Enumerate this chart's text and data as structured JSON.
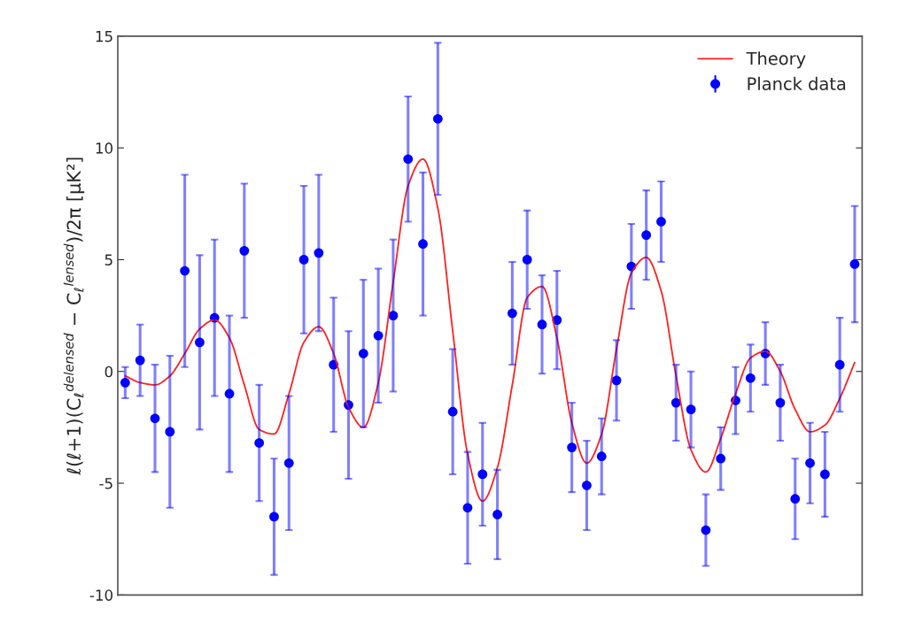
{
  "chart_data": {
    "type": "scatter",
    "ylabel": "ℓ(ℓ+1)(C$_{ℓ}$$^{delensed}$ − C$_{ℓ}$$^{lensed}$)/2π [μK²]",
    "categories": [
      null,
      null,
      null,
      null,
      null,
      null,
      null,
      null,
      null,
      null,
      null,
      null,
      null,
      null,
      null,
      null,
      null,
      null,
      null,
      null,
      null,
      null,
      null,
      null,
      null,
      null,
      null,
      null,
      null,
      null,
      null,
      null,
      null,
      null,
      null,
      null,
      null,
      null,
      null,
      null,
      null,
      null,
      null,
      null,
      null,
      null,
      null,
      null,
      null,
      null
    ],
    "series": [
      {
        "name": "Theory",
        "type": "line",
        "color": "#ff2020",
        "marker": "none",
        "values": [
          -0.2,
          -0.5,
          -0.6,
          -0.2,
          0.8,
          1.9,
          2.3,
          1.5,
          -0.6,
          -2.6,
          -2.8,
          -1.0,
          1.3,
          2.0,
          0.8,
          -1.6,
          -2.5,
          -0.5,
          4.0,
          8.3,
          9.5,
          7.3,
          1.8,
          -3.7,
          -5.8,
          -4.3,
          -0.6,
          3.3,
          3.8,
          1.5,
          -2.3,
          -4.1,
          -2.8,
          1.0,
          4.4,
          5.1,
          3.6,
          -0.2,
          -3.5,
          -4.5,
          -3.0,
          -1.0,
          0.6,
          0.9,
          0.0,
          -1.7,
          -2.7,
          -2.4,
          -1.2,
          0.4
        ]
      },
      {
        "name": "Planck data",
        "color": "#0000ff",
        "marker": "circle",
        "values": [
          -0.5,
          0.5,
          -2.1,
          -2.7,
          4.5,
          1.3,
          2.4,
          -1.0,
          5.4,
          -3.2,
          -6.5,
          -4.1,
          5.0,
          5.3,
          0.3,
          -1.5,
          0.8,
          1.6,
          2.5,
          9.5,
          5.7,
          11.3,
          -1.8,
          -6.1,
          -4.6,
          -6.4,
          2.6,
          5.0,
          2.1,
          2.3,
          -3.4,
          -5.1,
          -3.8,
          -0.4,
          4.7,
          6.1,
          6.7,
          -1.4,
          -1.7,
          -7.1,
          -3.9,
          -1.3,
          -0.3,
          0.8,
          -1.4,
          -5.7,
          -4.1,
          -4.6,
          0.3,
          4.8
        ],
        "errors": [
          0.7,
          1.6,
          2.4,
          3.4,
          4.3,
          3.9,
          3.5,
          3.5,
          3.0,
          2.6,
          2.6,
          3.0,
          3.3,
          3.5,
          3.0,
          3.3,
          3.3,
          3.0,
          3.4,
          2.8,
          3.2,
          3.4,
          2.8,
          2.5,
          2.3,
          2.0,
          2.3,
          2.2,
          2.2,
          2.2,
          2.0,
          2.0,
          1.7,
          1.8,
          1.9,
          2.0,
          1.8,
          1.7,
          1.7,
          1.6,
          1.4,
          1.5,
          1.5,
          1.4,
          1.7,
          1.8,
          1.8,
          1.9,
          2.1,
          2.6
        ]
      }
    ],
    "ylim": [
      -10,
      15
    ],
    "yticks": [
      -10,
      -5,
      0,
      5,
      10,
      15
    ],
    "tick_labels": "y",
    "grid": false,
    "legend": "top right"
  }
}
